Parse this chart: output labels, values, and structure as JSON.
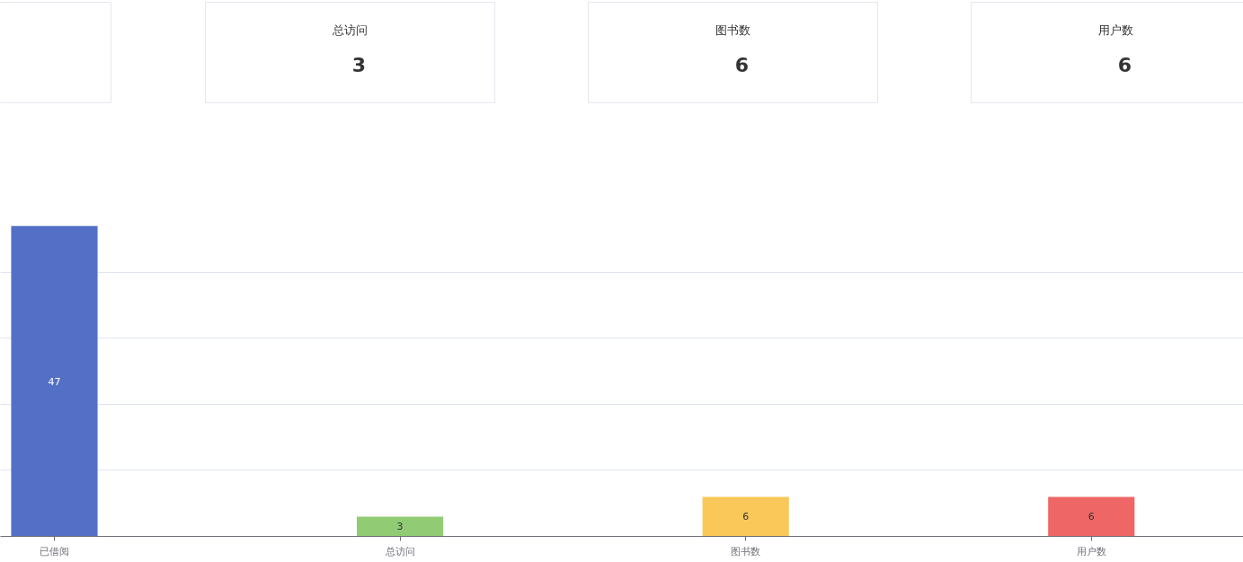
{
  "chart_data": [
    {
      "type": "other",
      "categories": [
        "总访问",
        "图书数",
        "用户数"
      ],
      "values": [
        3,
        6,
        6
      ],
      "data_labels": true
    },
    {
      "type": "bar",
      "categories": [
        "已借阅",
        "总访问",
        "图书数",
        "用户数"
      ],
      "values": [
        47,
        3,
        6,
        6
      ],
      "colors": [
        "#5470c6",
        "#91cc75",
        "#fac858",
        "#ee6666"
      ],
      "grid": "y",
      "tick_labels": "x",
      "data_labels": true
    }
  ]
}
